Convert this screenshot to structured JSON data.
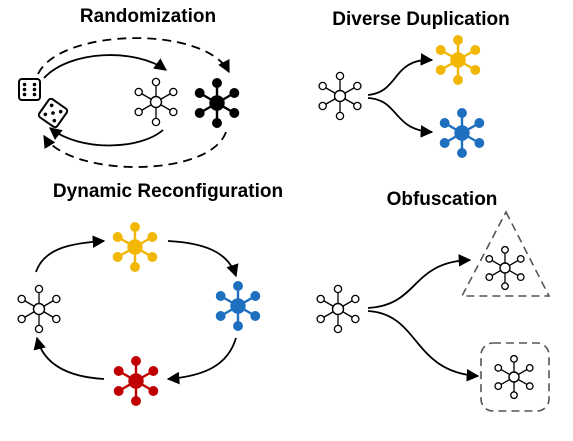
{
  "panels": {
    "randomization": {
      "title": "Randomization"
    },
    "diverse_duplication": {
      "title": "Diverse Duplication"
    },
    "dynamic_reconfiguration": {
      "title": "Dynamic Reconfiguration"
    },
    "obfuscation": {
      "title": "Obfuscation"
    }
  },
  "colors": {
    "stroke": "#000000",
    "outline_fill": "#ffffff",
    "black_node": "#000000",
    "yellow_node": "#f2b705",
    "blue_node": "#1f6fbf",
    "red_node": "#c00000",
    "mask_border": "#555555"
  },
  "icons": {
    "dice": "two-dice-icon",
    "outline_node": "outline-network-icon",
    "black_node": "black-network-icon",
    "yellow_node": "yellow-network-icon",
    "blue_node": "blue-network-icon",
    "red_node": "red-network-icon"
  }
}
